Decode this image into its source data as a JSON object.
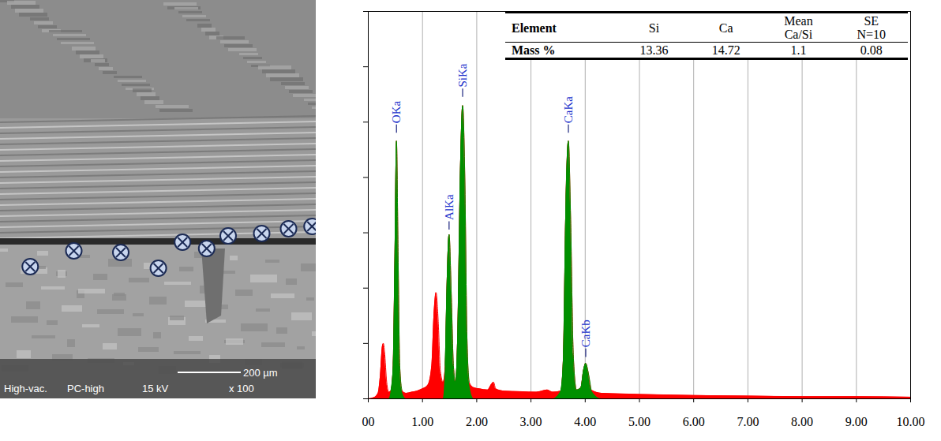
{
  "image": {
    "footer": [
      "High-vac.",
      "PC-high",
      "15 kV",
      "x 100"
    ],
    "scale_bar": "200 µm",
    "markers": 10
  },
  "chart_data": {
    "type": "area",
    "x": [
      0.0,
      0.1,
      0.18,
      0.22,
      0.26,
      0.28,
      0.3,
      0.34,
      0.38,
      0.42,
      0.46,
      0.49,
      0.52,
      0.55,
      0.58,
      0.62,
      0.7,
      0.8,
      0.9,
      1.0,
      1.1,
      1.17,
      1.21,
      1.25,
      1.29,
      1.33,
      1.38,
      1.42,
      1.45,
      1.49,
      1.53,
      1.57,
      1.61,
      1.65,
      1.7,
      1.74,
      1.78,
      1.82,
      1.86,
      1.95,
      2.05,
      2.2,
      2.27,
      2.31,
      2.35,
      2.5,
      2.8,
      3.1,
      3.3,
      3.4,
      3.55,
      3.6,
      3.64,
      3.69,
      3.73,
      3.78,
      3.84,
      3.92,
      3.97,
      4.01,
      4.05,
      4.11,
      4.3,
      5.0,
      6.0,
      7.0,
      8.0,
      9.0,
      10.0
    ],
    "series": [
      {
        "color": "#ff0000",
        "values": [
          0,
          2,
          10,
          40,
          95,
          100,
          85,
          30,
          12,
          15,
          60,
          250,
          466,
          260,
          60,
          15,
          10,
          12,
          14,
          18,
          25,
          60,
          150,
          192,
          140,
          50,
          30,
          60,
          200,
          297,
          190,
          60,
          30,
          120,
          420,
          530,
          400,
          110,
          30,
          20,
          18,
          16,
          26,
          30,
          18,
          14,
          13,
          12,
          16,
          12,
          14,
          80,
          330,
          466,
          330,
          80,
          16,
          20,
          52,
          64,
          50,
          16,
          10,
          8,
          6,
          5,
          4,
          4,
          3
        ]
      },
      {
        "color": "#009000",
        "values": [
          null,
          null,
          null,
          null,
          null,
          null,
          null,
          null,
          null,
          15,
          60,
          250,
          466,
          260,
          60,
          15,
          null,
          null,
          null,
          null,
          null,
          null,
          null,
          null,
          null,
          null,
          null,
          60,
          200,
          297,
          190,
          60,
          30,
          120,
          420,
          530,
          400,
          110,
          30,
          null,
          null,
          null,
          null,
          null,
          null,
          null,
          null,
          null,
          null,
          null,
          14,
          80,
          330,
          466,
          330,
          80,
          16,
          20,
          52,
          64,
          50,
          16,
          null,
          null,
          null,
          null,
          null,
          null,
          null
        ]
      }
    ],
    "xlim": [
      0,
      10
    ],
    "xticks": [
      {
        "value": 0,
        "label": "00"
      },
      {
        "value": 1,
        "label": "1.00"
      },
      {
        "value": 2,
        "label": "2.00"
      },
      {
        "value": 3,
        "label": "3.00"
      },
      {
        "value": 4,
        "label": "4.00"
      },
      {
        "value": 5,
        "label": "5.00"
      },
      {
        "value": 6,
        "label": "6.00"
      },
      {
        "value": 7,
        "label": "7.00"
      },
      {
        "value": 8,
        "label": "8.00"
      },
      {
        "value": 9,
        "label": "9.00"
      },
      {
        "value": 10,
        "label": "10.00"
      }
    ],
    "ylim": [
      0,
      700
    ],
    "yticks": [
      0,
      100,
      200,
      300,
      400,
      500,
      600,
      700
    ],
    "tick_labels": "x",
    "grid": "x",
    "annotations": [
      {
        "text": "OKa",
        "x": 0.52,
        "y": 480
      },
      {
        "text": "AlKa",
        "x": 1.49,
        "y": 305
      },
      {
        "text": "SiKa",
        "x": 1.74,
        "y": 545
      },
      {
        "text": "CaKa",
        "x": 3.69,
        "y": 480
      },
      {
        "text": "CaKb",
        "x": 4.01,
        "y": 75
      }
    ],
    "table": {
      "header": [
        "Element",
        "Si",
        "Ca",
        "Mean Ca/Si",
        "SE N=10"
      ],
      "rows": [
        [
          "Mass %",
          13.36,
          14.72,
          1.1,
          0.08
        ]
      ]
    }
  }
}
